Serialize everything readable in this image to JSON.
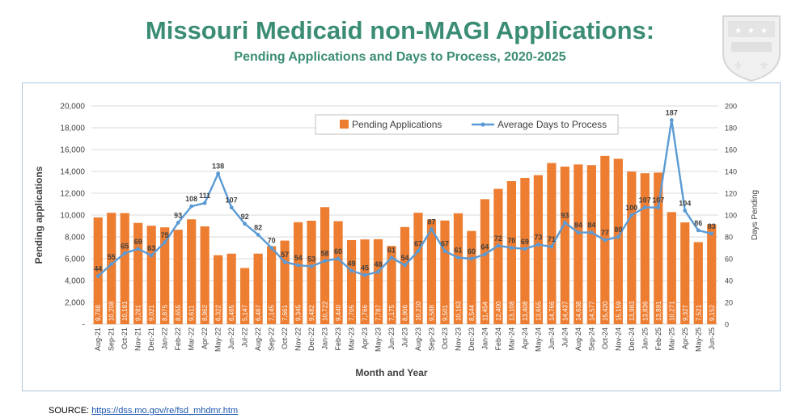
{
  "header": {
    "title": "Missouri Medicaid non-MAGI Applications:",
    "subtitle": "Pending Applications and Days to Process, 2020-2025"
  },
  "source": {
    "label": "SOURCE:",
    "link_text": "https://dss.mo.gov/re/fsd_mhdmr.htm"
  },
  "colors": {
    "bar": "#ed7d31",
    "line": "#5b9bd5",
    "title": "#3a8c75",
    "grid": "#d9d9d9",
    "axis_text": "#404040"
  },
  "chart_data": {
    "type": "bar",
    "title": "Missouri Medicaid non-MAGI Applications:",
    "xlabel": "Month and Year",
    "ylabel": "Pending applications",
    "y2label": "Days Pending",
    "ylim": [
      0,
      20000
    ],
    "y2lim": [
      0,
      200
    ],
    "yticks": [
      "-",
      "2,000",
      "4,000",
      "6,000",
      "8,000",
      "10,000",
      "12,000",
      "14,000",
      "16,000",
      "18,000",
      "20,000"
    ],
    "y2ticks": [
      "0",
      "20",
      "40",
      "60",
      "80",
      "100",
      "120",
      "140",
      "160",
      "180",
      "200"
    ],
    "legend": [
      "Pending Applications",
      "Average Days to Process"
    ],
    "categories": [
      "Aug-21",
      "Sep-21",
      "Oct-21",
      "Nov-21",
      "Dec-21",
      "Jan-22",
      "Feb-22",
      "Mar-22",
      "Apr-22",
      "May-22",
      "Jun-22",
      "Jul-22",
      "Aug-22",
      "Sep-22",
      "Oct-22",
      "Nov-22",
      "Dec-22",
      "Jan-23",
      "Feb-23",
      "Mar-23",
      "Apr-23",
      "May-23",
      "Jun-23",
      "Jul-23",
      "Aug-23",
      "Sep-23",
      "Oct-23",
      "Nov-23",
      "Dec-23",
      "Jan-24",
      "Feb-24",
      "Mar-24",
      "Apr-24",
      "May-24",
      "Jun-24",
      "Jul-24",
      "Aug-24",
      "Sep-24",
      "Oct-24",
      "Nov-24",
      "Dec-24",
      "Jan-25",
      "Feb-25",
      "Mar-25",
      "Apr-25",
      "May-25",
      "Jun-25"
    ],
    "series": [
      {
        "name": "Pending Applications",
        "axis": "left",
        "values": [
          9788,
          10208,
          10181,
          9281,
          9021,
          8875,
          8655,
          9611,
          8962,
          6322,
          6465,
          5147,
          6467,
          7145,
          7661,
          9345,
          9482,
          10722,
          9440,
          7705,
          7766,
          7787,
          7175,
          8906,
          10210,
          9588,
          9501,
          10163,
          8544,
          11454,
          12400,
          13108,
          13408,
          13655,
          14766,
          14437,
          14638,
          14577,
          15420,
          15159,
          13983,
          13836,
          13891,
          10271,
          9327,
          7521,
          9152
        ],
        "labels": [
          "9,788",
          "10,208",
          "10,181",
          "9,281",
          "9,021",
          "8,875",
          "8,655",
          "9,611",
          "8,962",
          "6,322",
          "6,465",
          "5,147",
          "6,467",
          "7,145",
          "7,661",
          "9,345",
          "9,482",
          "10,722",
          "9,440",
          "7,705",
          "7,766",
          "7,787",
          "7,175",
          "8,906",
          "10,210",
          "9,588",
          "9,501",
          "10,163",
          "8,544",
          "11,454",
          "12,400",
          "13,108",
          "13,408",
          "13,655",
          "14,766",
          "14,437",
          "14,638",
          "14,577",
          "15,420",
          "15,159",
          "13,983",
          "13,836",
          "13,891",
          "10,271",
          "9,327",
          "7,521",
          "9,152"
        ]
      },
      {
        "name": "Average Days to Process",
        "axis": "right",
        "values": [
          44,
          55,
          65,
          69,
          63,
          75,
          93,
          108,
          111,
          138,
          107,
          92,
          82,
          70,
          57,
          54,
          53,
          58,
          60,
          49,
          45,
          48,
          61,
          54,
          67,
          87,
          67,
          61,
          60,
          64,
          72,
          70,
          69,
          73,
          71,
          93,
          84,
          84,
          77,
          80,
          100,
          107,
          107,
          187,
          104,
          86,
          83
        ],
        "labels": [
          "44",
          "55",
          "65",
          "69",
          "63",
          "75",
          "93",
          "108",
          "111",
          "138",
          "107",
          "92",
          "82",
          "70",
          "57",
          "54",
          "53",
          "58",
          "60",
          "49",
          "45",
          "48",
          "61",
          "54",
          "67",
          "87",
          "67",
          "61",
          "60",
          "64",
          "72",
          "70",
          "69",
          "73",
          "71",
          "93",
          "84",
          "84",
          "77",
          "80",
          "100",
          "107",
          "107",
          "187",
          "104",
          "86",
          "83"
        ]
      }
    ]
  }
}
